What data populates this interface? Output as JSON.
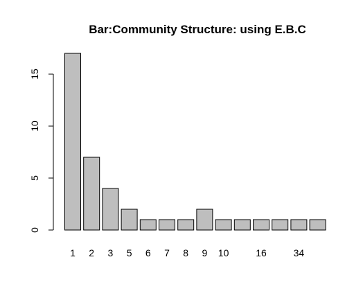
{
  "chart_data": {
    "type": "bar",
    "title": "Bar:Community Structure: using E.B.C",
    "xlabel": "",
    "ylabel": "",
    "categories": [
      "1",
      "2",
      "3",
      "5",
      "6",
      "7",
      "8",
      "9",
      "10",
      "",
      "16",
      "",
      "34",
      ""
    ],
    "values": [
      17,
      7,
      4,
      2,
      1,
      1,
      1,
      2,
      1,
      1,
      1,
      1,
      1,
      1
    ],
    "ylim": [
      0,
      17
    ],
    "yticks": [
      0,
      5,
      10,
      15
    ],
    "bar_color": "#bebebe",
    "grid": false,
    "legend": "none"
  }
}
